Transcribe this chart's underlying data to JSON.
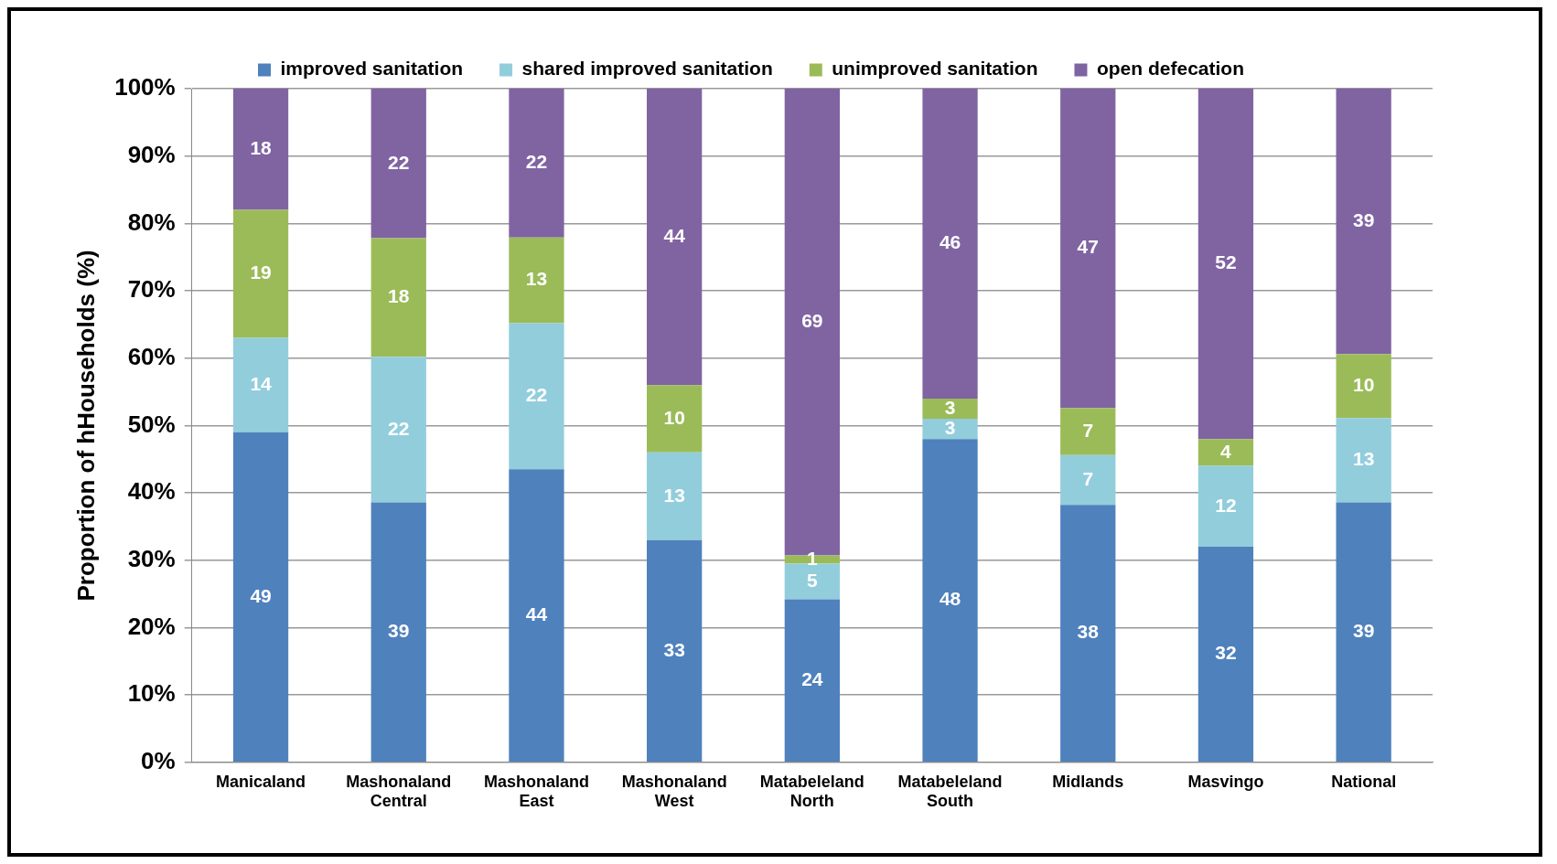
{
  "chart_data": {
    "type": "bar",
    "stacked": true,
    "ylabel": "Proportion of hHouseholds (%)",
    "categories": [
      "Manicaland",
      "Mashonaland Central",
      "Mashonaland East",
      "Mashonaland West",
      "Matabeleland North",
      "Matabeleland South",
      "Midlands",
      "Masvingo",
      "National"
    ],
    "series": [
      {
        "name": "improved sanitation",
        "color": "#4f81bd",
        "values": [
          49,
          38.6,
          43.5,
          33,
          24.2,
          48,
          38.2,
          32,
          38.6
        ],
        "value_labels": [
          "49",
          "39",
          "44",
          "33",
          "24",
          "48",
          "38",
          "32",
          "39"
        ]
      },
      {
        "name": "shared improved sanitation",
        "color": "#92cddc",
        "values": [
          14,
          21.6,
          21.7,
          13,
          5.3,
          3,
          7.4,
          12,
          12.5
        ],
        "value_labels": [
          "14",
          "22",
          "22",
          "13",
          "5",
          "3",
          "7",
          "12",
          "13"
        ]
      },
      {
        "name": "unimproved sanitation",
        "color": "#9bbb59",
        "values": [
          19,
          17.6,
          12.7,
          10,
          1.2,
          3,
          7.0,
          4,
          9.5
        ],
        "value_labels": [
          "19",
          "18",
          "13",
          "10",
          "1",
          "3",
          "7",
          "4",
          "10"
        ]
      },
      {
        "name": "open defecation",
        "color": "#8064a2",
        "values": [
          18,
          22.2,
          22.1,
          44,
          69.3,
          46,
          47.4,
          52,
          39.4
        ],
        "value_labels": [
          "18",
          "22",
          "22",
          "44",
          "69",
          "46",
          "47",
          "52",
          "39"
        ]
      }
    ],
    "ylim": [
      0,
      100
    ],
    "yticks": [
      {
        "value": 0,
        "label": "0%"
      },
      {
        "value": 10,
        "label": "10%"
      },
      {
        "value": 20,
        "label": "20%"
      },
      {
        "value": 30,
        "label": "30%"
      },
      {
        "value": 40,
        "label": "40%"
      },
      {
        "value": 50,
        "label": "50%"
      },
      {
        "value": 60,
        "label": "60%"
      },
      {
        "value": 70,
        "label": "70%"
      },
      {
        "value": 80,
        "label": "80%"
      },
      {
        "value": 90,
        "label": "90%"
      },
      {
        "value": 100,
        "label": "100%"
      }
    ],
    "grid": "y",
    "legend": "top"
  }
}
